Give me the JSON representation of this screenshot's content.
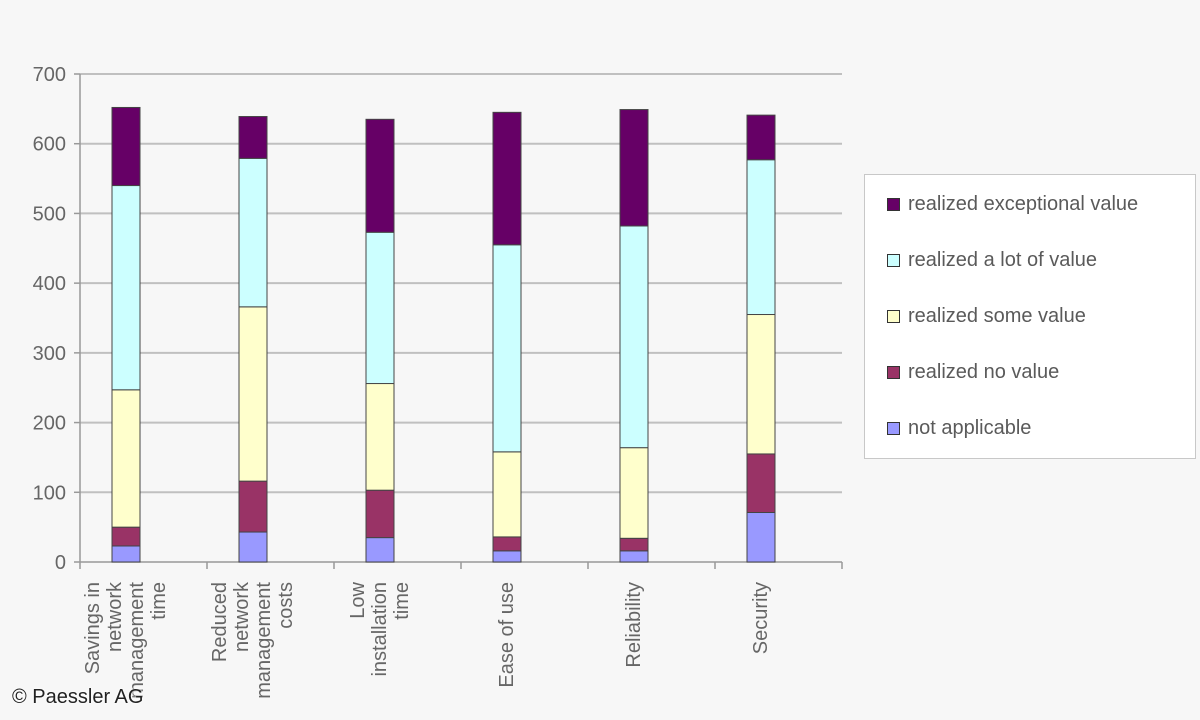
{
  "chart_data": {
    "type": "bar",
    "stacked": true,
    "categories": [
      [
        "Savings in",
        "network",
        "management",
        "time"
      ],
      [
        "Reduced",
        "network",
        "management",
        "costs"
      ],
      [
        "Low",
        "installation",
        "time"
      ],
      [
        "Ease of use"
      ],
      [
        "Reliability"
      ],
      [
        "Security"
      ]
    ],
    "series": [
      {
        "name": "not applicable",
        "color": "#9999ff",
        "values": [
          23,
          43,
          35,
          16,
          16,
          71
        ]
      },
      {
        "name": "realized no value",
        "color": "#993366",
        "values": [
          27,
          73,
          68,
          20,
          18,
          84
        ]
      },
      {
        "name": "realized some value",
        "color": "#ffffcc",
        "values": [
          197,
          250,
          153,
          122,
          130,
          200
        ]
      },
      {
        "name": "realized a lot of value",
        "color": "#ccffff",
        "values": [
          293,
          213,
          217,
          297,
          318,
          222
        ]
      },
      {
        "name": "realized exceptional value",
        "color": "#660066",
        "values": [
          112,
          60,
          162,
          190,
          167,
          64
        ]
      }
    ],
    "ylim": [
      0,
      700
    ],
    "yticks": [
      0,
      100,
      200,
      300,
      400,
      500,
      600,
      700
    ],
    "grid": true,
    "legend_position": "right"
  },
  "legend_order": [
    4,
    3,
    2,
    1,
    0
  ],
  "copyright": "© Paessler AG"
}
